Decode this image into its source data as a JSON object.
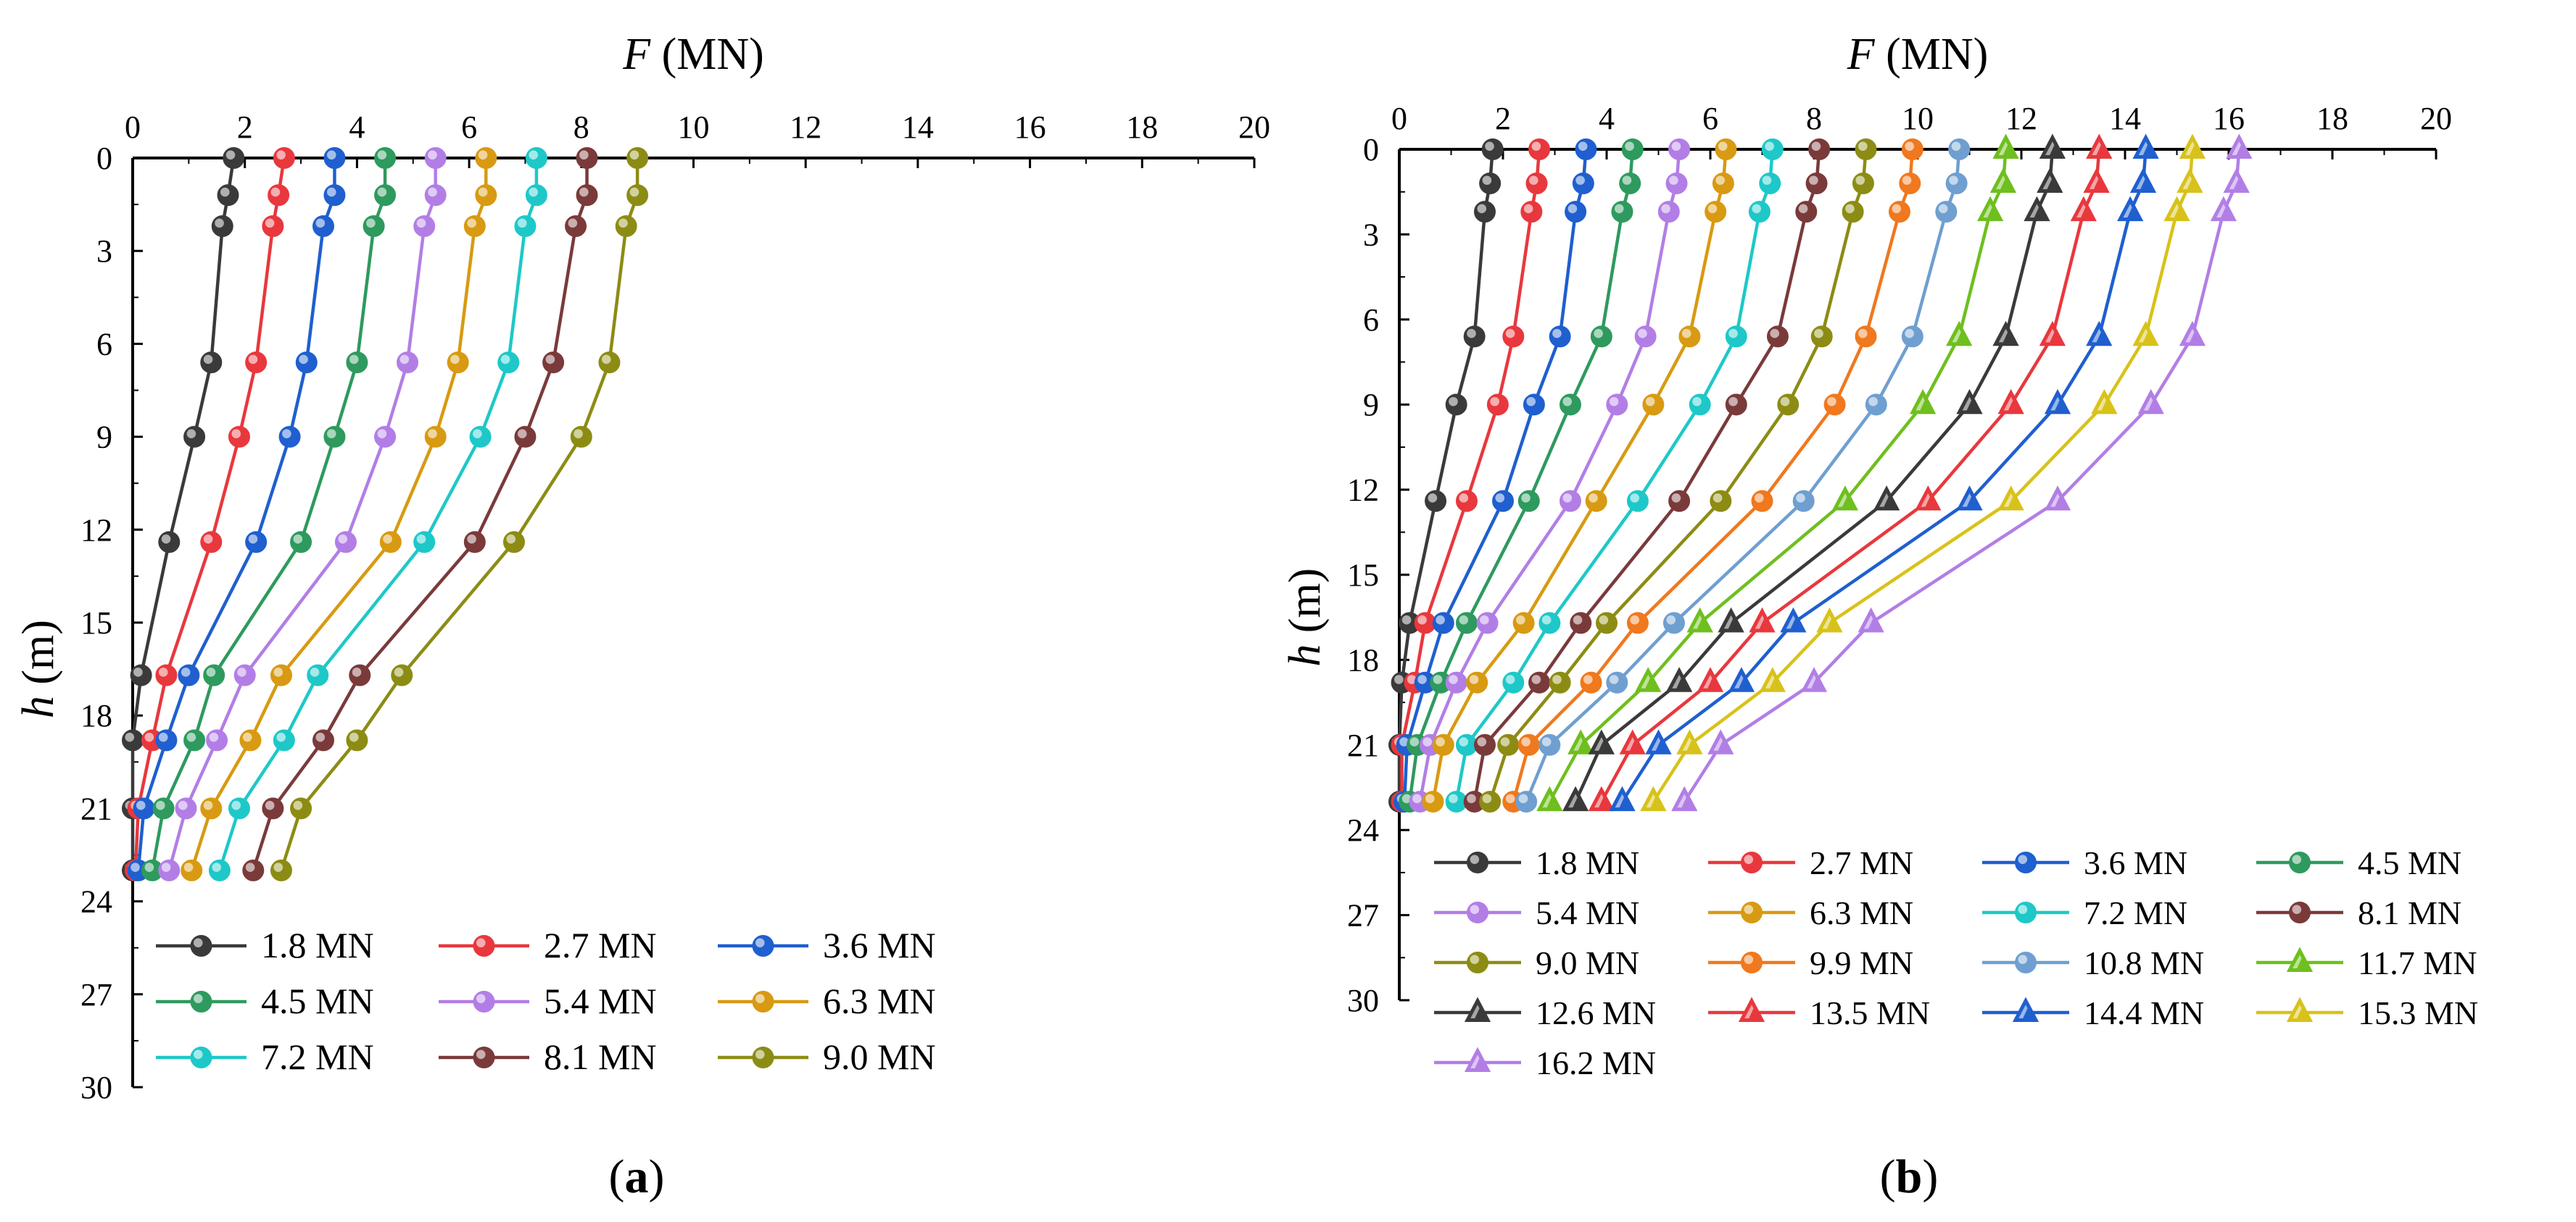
{
  "chart_data": [
    {
      "type": "line",
      "panel_label": "(a)",
      "xlabel": "F (MN)",
      "ylabel": "h (m)",
      "x_axis_position": "top",
      "y_axis_inverted": true,
      "xlim": [
        0,
        20
      ],
      "ylim": [
        0,
        30
      ],
      "x_ticks": [
        "0",
        "2",
        "4",
        "6",
        "8",
        "10",
        "12",
        "14",
        "16",
        "18",
        "20"
      ],
      "y_ticks": [
        "0",
        "3",
        "6",
        "9",
        "12",
        "15",
        "18",
        "21",
        "24",
        "27",
        "30"
      ],
      "depths": [
        0,
        1.2,
        2.2,
        6.6,
        9.0,
        12.4,
        16.7,
        18.8,
        21.0,
        23.0
      ],
      "legend_position": "bottom-left, inside",
      "series": [
        {
          "name": "1.8 MN",
          "color": "#3a3a3a",
          "marker": "circle",
          "values": [
            1.8,
            1.7,
            1.6,
            1.4,
            1.1,
            0.65,
            0.15,
            0.0,
            0.0,
            0.0
          ]
        },
        {
          "name": "2.7 MN",
          "color": "#e8383d",
          "marker": "circle",
          "values": [
            2.7,
            2.6,
            2.5,
            2.2,
            1.9,
            1.4,
            0.6,
            0.35,
            0.1,
            0.05
          ]
        },
        {
          "name": "3.6 MN",
          "color": "#1f5fcf",
          "marker": "circle",
          "values": [
            3.6,
            3.6,
            3.4,
            3.1,
            2.8,
            2.2,
            1.0,
            0.6,
            0.2,
            0.1
          ]
        },
        {
          "name": "4.5 MN",
          "color": "#2e9a5e",
          "marker": "circle",
          "values": [
            4.5,
            4.5,
            4.3,
            4.0,
            3.6,
            3.0,
            1.45,
            1.1,
            0.55,
            0.35
          ]
        },
        {
          "name": "5.4 MN",
          "color": "#b27ee6",
          "marker": "circle",
          "values": [
            5.4,
            5.4,
            5.2,
            4.9,
            4.5,
            3.8,
            2.0,
            1.5,
            0.95,
            0.65
          ]
        },
        {
          "name": "6.3 MN",
          "color": "#d89a12",
          "marker": "circle",
          "values": [
            6.3,
            6.3,
            6.1,
            5.8,
            5.4,
            4.6,
            2.65,
            2.1,
            1.4,
            1.05
          ]
        },
        {
          "name": "7.2 MN",
          "color": "#1ec8c8",
          "marker": "circle",
          "values": [
            7.2,
            7.2,
            7.0,
            6.7,
            6.2,
            5.2,
            3.3,
            2.7,
            1.9,
            1.55
          ]
        },
        {
          "name": "8.1 MN",
          "color": "#7a3a3a",
          "marker": "circle",
          "values": [
            8.1,
            8.1,
            7.9,
            7.5,
            7.0,
            6.1,
            4.05,
            3.4,
            2.5,
            2.15
          ]
        },
        {
          "name": "9.0 MN",
          "color": "#8c8c14",
          "marker": "circle",
          "values": [
            9.0,
            9.0,
            8.8,
            8.5,
            8.0,
            6.8,
            4.8,
            4.0,
            3.0,
            2.65
          ]
        }
      ]
    },
    {
      "type": "line",
      "panel_label": "(b)",
      "xlabel": "F (MN)",
      "ylabel": "h (m)",
      "x_axis_position": "top",
      "y_axis_inverted": true,
      "xlim": [
        0,
        20
      ],
      "ylim": [
        0,
        30
      ],
      "x_ticks": [
        "0",
        "2",
        "4",
        "6",
        "8",
        "10",
        "12",
        "14",
        "16",
        "18",
        "20"
      ],
      "y_ticks": [
        "0",
        "3",
        "6",
        "9",
        "12",
        "15",
        "18",
        "21",
        "24",
        "27",
        "30"
      ],
      "depths": [
        0,
        1.2,
        2.2,
        6.6,
        9.0,
        12.4,
        16.7,
        18.8,
        21.0,
        23.0
      ],
      "legend_position": "bottom, inside",
      "series": [
        {
          "name": "1.8 MN",
          "color": "#3a3a3a",
          "marker": "circle",
          "values": [
            1.8,
            1.75,
            1.65,
            1.45,
            1.1,
            0.7,
            0.2,
            0.05,
            0.0,
            0.0
          ]
        },
        {
          "name": "2.7 MN",
          "color": "#e8383d",
          "marker": "circle",
          "values": [
            2.7,
            2.65,
            2.55,
            2.2,
            1.9,
            1.3,
            0.5,
            0.3,
            0.05,
            0.05
          ]
        },
        {
          "name": "3.6 MN",
          "color": "#1f5fcf",
          "marker": "circle",
          "values": [
            3.6,
            3.55,
            3.4,
            3.1,
            2.6,
            2.0,
            0.85,
            0.5,
            0.15,
            0.1
          ]
        },
        {
          "name": "4.5 MN",
          "color": "#2e9a5e",
          "marker": "circle",
          "values": [
            4.5,
            4.45,
            4.3,
            3.9,
            3.3,
            2.5,
            1.3,
            0.8,
            0.35,
            0.2
          ]
        },
        {
          "name": "5.4 MN",
          "color": "#b27ee6",
          "marker": "circle",
          "values": [
            5.4,
            5.35,
            5.2,
            4.75,
            4.2,
            3.3,
            1.7,
            1.1,
            0.6,
            0.4
          ]
        },
        {
          "name": "6.3 MN",
          "color": "#d89a12",
          "marker": "circle",
          "values": [
            6.3,
            6.25,
            6.1,
            5.6,
            4.9,
            3.8,
            2.4,
            1.5,
            0.85,
            0.65
          ]
        },
        {
          "name": "7.2 MN",
          "color": "#1ec8c8",
          "marker": "circle",
          "values": [
            7.2,
            7.15,
            6.95,
            6.5,
            5.8,
            4.6,
            2.9,
            2.2,
            1.3,
            1.1
          ]
        },
        {
          "name": "8.1 MN",
          "color": "#7a3a3a",
          "marker": "circle",
          "values": [
            8.1,
            8.05,
            7.85,
            7.3,
            6.5,
            5.4,
            3.5,
            2.7,
            1.65,
            1.45
          ]
        },
        {
          "name": "9.0 MN",
          "color": "#8c8c14",
          "marker": "circle",
          "values": [
            9.0,
            8.95,
            8.75,
            8.15,
            7.5,
            6.2,
            4.0,
            3.1,
            2.1,
            1.75
          ]
        },
        {
          "name": "9.9 MN",
          "color": "#f0781e",
          "marker": "circle",
          "values": [
            9.9,
            9.85,
            9.65,
            9.0,
            8.4,
            7.0,
            4.6,
            3.7,
            2.5,
            2.2
          ]
        },
        {
          "name": "10.8 MN",
          "color": "#6f9fd0",
          "marker": "circle",
          "values": [
            10.8,
            10.75,
            10.55,
            9.9,
            9.2,
            7.8,
            5.3,
            4.2,
            2.9,
            2.45
          ]
        },
        {
          "name": "11.7 MN",
          "color": "#6fbf1e",
          "marker": "triangle",
          "values": [
            11.7,
            11.65,
            11.4,
            10.8,
            10.1,
            8.6,
            5.8,
            4.8,
            3.5,
            2.9
          ]
        },
        {
          "name": "12.6 MN",
          "color": "#3a3a3a",
          "marker": "triangle",
          "values": [
            12.6,
            12.55,
            12.3,
            11.7,
            11.0,
            9.4,
            6.4,
            5.4,
            3.9,
            3.4
          ]
        },
        {
          "name": "13.5 MN",
          "color": "#e8383d",
          "marker": "triangle",
          "values": [
            13.5,
            13.45,
            13.2,
            12.6,
            11.8,
            10.2,
            7.0,
            6.0,
            4.5,
            3.9
          ]
        },
        {
          "name": "14.4 MN",
          "color": "#1f5fcf",
          "marker": "triangle",
          "values": [
            14.4,
            14.35,
            14.1,
            13.5,
            12.7,
            11.0,
            7.6,
            6.6,
            5.0,
            4.3
          ]
        },
        {
          "name": "15.3 MN",
          "color": "#d8c21a",
          "marker": "triangle",
          "values": [
            15.3,
            15.25,
            15.0,
            14.4,
            13.6,
            11.8,
            8.3,
            7.2,
            5.6,
            4.9
          ]
        },
        {
          "name": "16.2 MN",
          "color": "#b27ee6",
          "marker": "triangle",
          "values": [
            16.2,
            16.15,
            15.9,
            15.3,
            14.5,
            12.7,
            9.1,
            8.0,
            6.2,
            5.5
          ]
        }
      ]
    }
  ]
}
